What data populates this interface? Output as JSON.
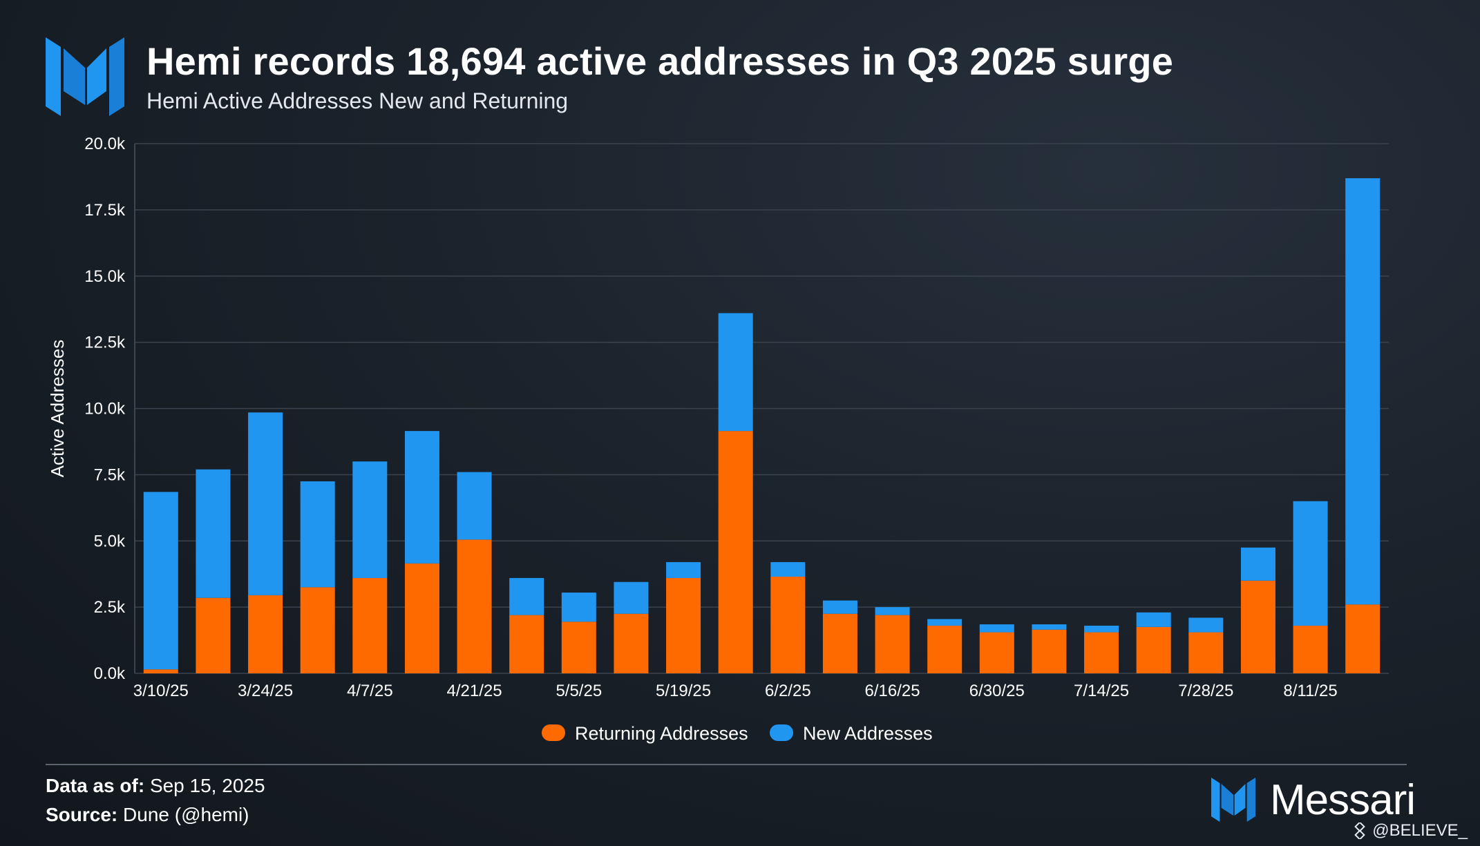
{
  "header": {
    "title": "Hemi records 18,694 active addresses in Q3 2025 surge",
    "subtitle": "Hemi Active Addresses New and Returning"
  },
  "colors": {
    "returning": "#ff6a00",
    "new": "#2196f0",
    "grid": "#3a434e",
    "text": "#ffffff"
  },
  "chart_data": {
    "type": "bar",
    "stacked": true,
    "title": "Hemi Active Addresses New and Returning",
    "xlabel": "",
    "ylabel": "Active Addresses",
    "ylim": [
      0,
      20000
    ],
    "yticks": [
      0,
      2500,
      5000,
      7500,
      10000,
      12500,
      15000,
      17500,
      20000
    ],
    "ytick_labels": [
      "0.0k",
      "2.5k",
      "5.0k",
      "7.5k",
      "10.0k",
      "12.5k",
      "15.0k",
      "17.5k",
      "20.0k"
    ],
    "categories": [
      "3/10/25",
      "3/17/25",
      "3/24/25",
      "3/31/25",
      "4/7/25",
      "4/14/25",
      "4/21/25",
      "4/28/25",
      "5/5/25",
      "5/12/25",
      "5/19/25",
      "5/26/25",
      "6/2/25",
      "6/9/25",
      "6/16/25",
      "6/23/25",
      "6/30/25",
      "7/7/25",
      "7/14/25",
      "7/21/25",
      "7/28/25",
      "8/4/25",
      "8/11/25",
      "8/18/25"
    ],
    "xtick_labels": [
      "3/10/25",
      "3/24/25",
      "4/7/25",
      "4/21/25",
      "5/5/25",
      "5/19/25",
      "6/2/25",
      "6/16/25",
      "6/30/25",
      "7/14/25",
      "7/28/25",
      "8/11/25"
    ],
    "series": [
      {
        "name": "Returning Addresses",
        "values": [
          150,
          2850,
          2950,
          3250,
          3600,
          4150,
          5050,
          2200,
          1950,
          2250,
          3600,
          9150,
          3650,
          2250,
          2200,
          1800,
          1550,
          1650,
          1550,
          1750,
          1550,
          3500,
          1800,
          2600
        ]
      },
      {
        "name": "New Addresses",
        "values": [
          6700,
          4850,
          6900,
          4000,
          4400,
          5000,
          2550,
          1400,
          1100,
          1200,
          600,
          4450,
          550,
          500,
          300,
          250,
          300,
          200,
          250,
          550,
          550,
          1250,
          4700,
          16094
        ]
      }
    ],
    "legend": [
      "Returning Addresses",
      "New Addresses"
    ],
    "legend_position": "bottom-center",
    "grid": true
  },
  "footer": {
    "date_label": "Data as of:",
    "date_value": "Sep 15, 2025",
    "source_label": "Source:",
    "source_value": "Dune (@hemi)",
    "brand": "Messari",
    "watermark": "@BELIEVE_"
  }
}
